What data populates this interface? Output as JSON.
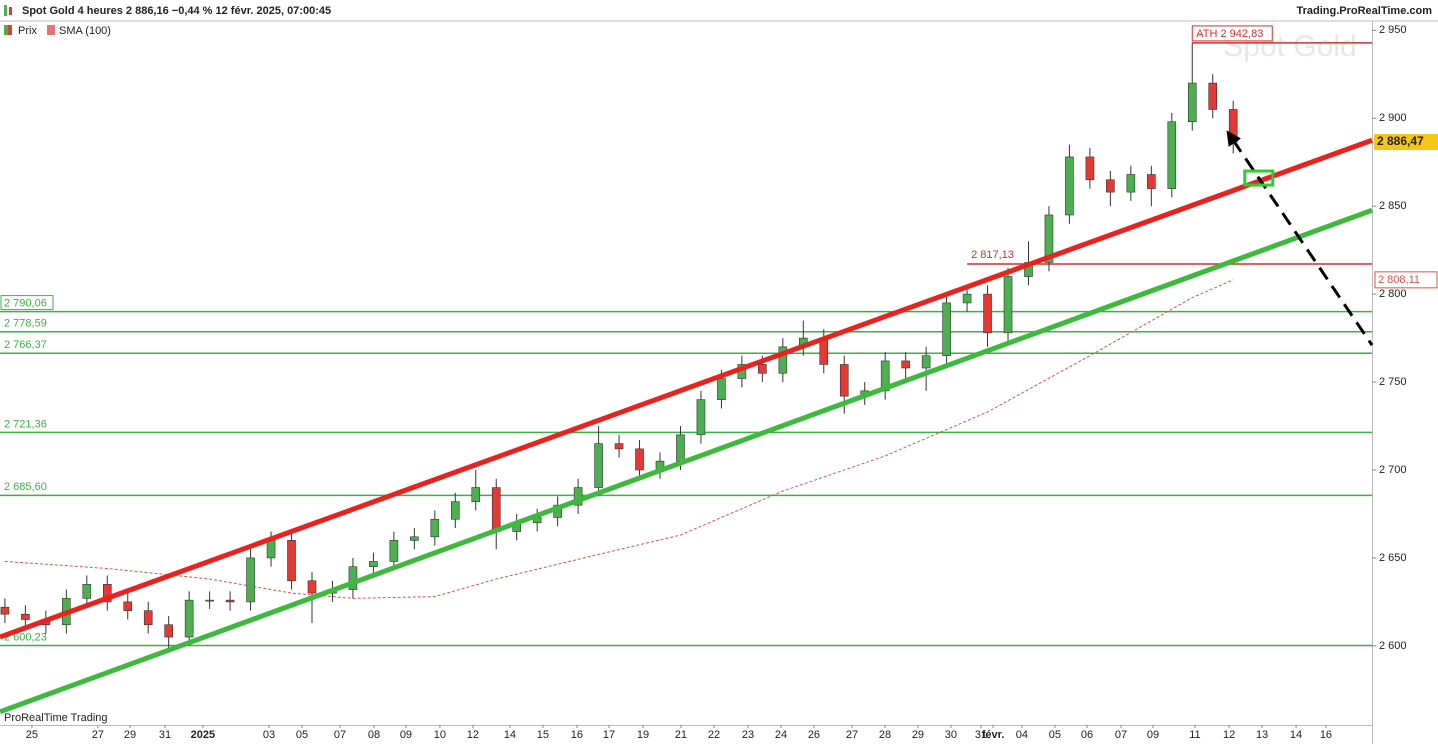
{
  "chart_data": {
    "type": "candlestick",
    "title": "Spot  Gold 4 heures 2 886,16 −0,44 % 12 févr. 2025, 07:00:45",
    "source": "Trading.ProRealTime.com",
    "watermark": "Spot Gold",
    "footer": "ProRealTime Trading",
    "candles": {
      "name": "Prix",
      "up_color": "#4caf50",
      "down_color": "#e53935",
      "last_label": "2 886,47",
      "x": [
        0,
        1,
        2,
        3,
        4,
        5,
        6,
        7,
        8,
        9,
        10,
        11,
        12,
        13,
        14,
        15,
        16,
        17,
        18,
        19,
        20,
        21,
        22,
        23,
        24,
        25,
        26,
        27,
        28,
        29,
        30,
        31,
        32,
        33,
        34,
        35,
        36,
        37,
        38,
        39,
        40,
        41,
        42,
        43,
        44,
        45,
        46,
        47,
        48,
        49,
        50,
        51,
        52,
        53,
        54,
        55,
        56,
        57,
        58,
        59,
        60
      ],
      "open": [
        2622,
        2618,
        2615,
        2612,
        2627,
        2635,
        2625,
        2620,
        2612,
        2605,
        2626,
        2626,
        2625,
        2650,
        2660,
        2637,
        2630,
        2632,
        2645,
        2648,
        2660,
        2662,
        2672,
        2682,
        2690,
        2665,
        2670,
        2673,
        2680,
        2690,
        2715,
        2712,
        2700,
        2705,
        2720,
        2740,
        2752,
        2760,
        2755,
        2770,
        2775,
        2760,
        2742,
        2745,
        2762,
        2758,
        2765,
        2795,
        2800,
        2778,
        2810,
        2818,
        2845,
        2878,
        2865,
        2858,
        2868,
        2860,
        2898,
        2920,
        2905
      ],
      "high": [
        2627,
        2623,
        2620,
        2632,
        2640,
        2640,
        2630,
        2625,
        2617,
        2631,
        2631,
        2631,
        2655,
        2665,
        2665,
        2642,
        2637,
        2650,
        2653,
        2665,
        2667,
        2677,
        2687,
        2700,
        2695,
        2675,
        2678,
        2685,
        2695,
        2725,
        2720,
        2717,
        2710,
        2725,
        2745,
        2757,
        2765,
        2765,
        2775,
        2785,
        2780,
        2765,
        2750,
        2767,
        2767,
        2770,
        2800,
        2805,
        2805,
        2815,
        2830,
        2850,
        2885,
        2883,
        2870,
        2873,
        2873,
        2903,
        2942.83,
        2925,
        2910
      ],
      "low": [
        2613,
        2610,
        2607,
        2607,
        2622,
        2620,
        2615,
        2607,
        2598,
        2600,
        2621,
        2620,
        2620,
        2645,
        2632,
        2613,
        2625,
        2627,
        2640,
        2643,
        2655,
        2657,
        2667,
        2677,
        2655,
        2660,
        2665,
        2668,
        2675,
        2685,
        2707,
        2695,
        2695,
        2700,
        2715,
        2735,
        2747,
        2750,
        2750,
        2765,
        2755,
        2732,
        2737,
        2740,
        2750,
        2745,
        2760,
        2790,
        2770,
        2773,
        2805,
        2813,
        2840,
        2860,
        2850,
        2853,
        2850,
        2855,
        2893,
        2900,
        2880
      ],
      "close": [
        2618,
        2615,
        2612,
        2627,
        2635,
        2625,
        2620,
        2612,
        2605,
        2626,
        2626,
        2625,
        2650,
        2660,
        2637,
        2630,
        2632,
        2645,
        2648,
        2660,
        2662,
        2672,
        2682,
        2690,
        2665,
        2670,
        2673,
        2680,
        2690,
        2715,
        2712,
        2700,
        2705,
        2720,
        2740,
        2752,
        2760,
        2755,
        2770,
        2775,
        2760,
        2742,
        2745,
        2762,
        2758,
        2765,
        2795,
        2800,
        2778,
        2810,
        2818,
        2845,
        2878,
        2865,
        2858,
        2868,
        2860,
        2898,
        2920,
        2905,
        2886.47
      ]
    },
    "sma": {
      "name": "SMA (100)",
      "color": "#d9534f",
      "last_label": "2 808,11",
      "x": [
        0,
        5,
        10,
        14,
        17,
        21,
        24,
        29,
        33,
        38,
        43,
        48,
        53,
        58,
        60
      ],
      "values": [
        2648,
        2644,
        2638,
        2630,
        2627,
        2628,
        2638,
        2652,
        2663,
        2688,
        2708,
        2733,
        2765,
        2798,
        2808.11
      ]
    },
    "levels": [
      {
        "value": 2790.06,
        "label": "2 790,06"
      },
      {
        "value": 2778.59,
        "label": "2 778,59"
      },
      {
        "value": 2766.37,
        "label": "2 766,37"
      },
      {
        "value": 2721.36,
        "label": "2 721,36"
      },
      {
        "value": 2685.6,
        "label": "2 685,60"
      },
      {
        "value": 2600.23,
        "label": "2 600,23"
      }
    ],
    "level_color": "#3cb043",
    "resistances": [
      {
        "value": 2942.83,
        "label": "ATH 2 942,83",
        "x_start": 58
      },
      {
        "value": 2817.13,
        "label": "2 817,13",
        "x_start": 47
      }
    ],
    "resistance_color": "#d32f2f",
    "trendlines": [
      {
        "color": "#e8231f",
        "x": [
          -0.24,
          66.78
        ],
        "y": [
          2605,
          2887.5
        ]
      },
      {
        "color": "#3dba3d",
        "x": [
          -0.24,
          66.78
        ],
        "y": [
          2562.5,
          2847.7
        ]
      },
      {
        "color": "#000000",
        "dashed": true,
        "x": [
          60.0,
          66.78
        ],
        "y": [
          2887.5,
          2771
        ]
      }
    ],
    "target_box": {
      "x": 61.25,
      "y": 2866,
      "color": "#2ecc2e"
    },
    "xlim": [
      -0.24,
      66.78
    ],
    "ylim": [
      2555,
      2957
    ],
    "yticks": [
      {
        "value": 2600,
        "label": "2 600"
      },
      {
        "value": 2650,
        "label": "2 650"
      },
      {
        "value": 2700,
        "label": "2 700"
      },
      {
        "value": 2750,
        "label": "2 750"
      },
      {
        "value": 2800,
        "label": "2 800"
      },
      {
        "value": 2850,
        "label": "2 850"
      },
      {
        "value": 2900,
        "label": "2 900"
      },
      {
        "value": 2950,
        "label": "2 950"
      }
    ],
    "xticks": [
      {
        "value": 1.32,
        "label": "25"
      },
      {
        "value": 4.54,
        "label": "27"
      },
      {
        "value": 6.11,
        "label": "29"
      },
      {
        "value": 7.82,
        "label": "31"
      },
      {
        "value": 9.67,
        "label": "2025"
      },
      {
        "value": 12.9,
        "label": "03"
      },
      {
        "value": 14.51,
        "label": "05"
      },
      {
        "value": 16.37,
        "label": "07"
      },
      {
        "value": 18.03,
        "label": "08"
      },
      {
        "value": 19.59,
        "label": "09"
      },
      {
        "value": 21.25,
        "label": "10"
      },
      {
        "value": 22.86,
        "label": "12"
      },
      {
        "value": 24.67,
        "label": "14"
      },
      {
        "value": 26.28,
        "label": "15"
      },
      {
        "value": 27.94,
        "label": "16"
      },
      {
        "value": 29.51,
        "label": "17"
      },
      {
        "value": 31.17,
        "label": "19"
      },
      {
        "value": 33.02,
        "label": "21"
      },
      {
        "value": 34.64,
        "label": "22"
      },
      {
        "value": 36.3,
        "label": "23"
      },
      {
        "value": 37.91,
        "label": "24"
      },
      {
        "value": 39.52,
        "label": "26"
      },
      {
        "value": 41.38,
        "label": "27"
      },
      {
        "value": 42.99,
        "label": "28"
      },
      {
        "value": 44.6,
        "label": "29"
      },
      {
        "value": 46.21,
        "label": "30"
      },
      {
        "value": 47.68,
        "label": "31"
      },
      {
        "value": 48.27,
        "label": "févr."
      },
      {
        "value": 49.68,
        "label": "04"
      },
      {
        "value": 51.29,
        "label": "05"
      },
      {
        "value": 52.86,
        "label": "06"
      },
      {
        "value": 54.52,
        "label": "07"
      },
      {
        "value": 56.08,
        "label": "09"
      },
      {
        "value": 58.13,
        "label": "11"
      },
      {
        "value": 59.8,
        "label": "12"
      },
      {
        "value": 61.41,
        "label": "13"
      },
      {
        "value": 63.07,
        "label": "14"
      },
      {
        "value": 64.53,
        "label": "16"
      }
    ]
  }
}
